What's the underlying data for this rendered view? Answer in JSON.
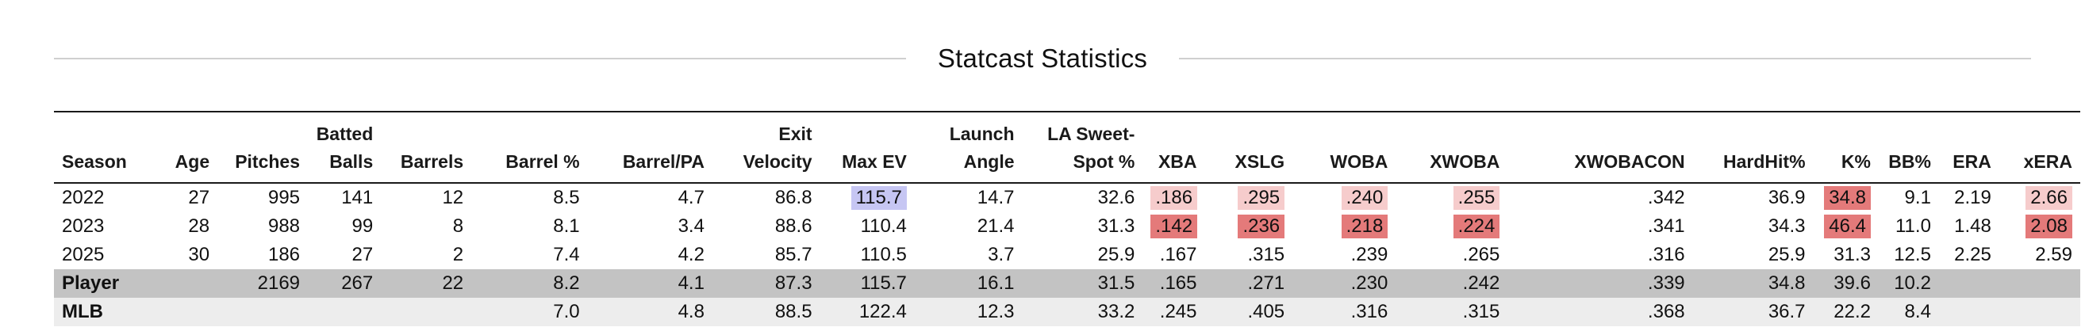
{
  "title": "Statcast Statistics",
  "columns": [
    {
      "key": "season",
      "label": "Season"
    },
    {
      "key": "age",
      "label": "Age"
    },
    {
      "key": "pitches",
      "label": "Pitches"
    },
    {
      "key": "batted_balls",
      "label": "Batted Balls"
    },
    {
      "key": "barrels",
      "label": "Barrels"
    },
    {
      "key": "barrel_pct",
      "label": "Barrel %"
    },
    {
      "key": "barrel_pa",
      "label": "Barrel/PA"
    },
    {
      "key": "exit_velocity",
      "label": "Exit Velocity"
    },
    {
      "key": "max_ev",
      "label": "Max EV"
    },
    {
      "key": "launch_angle",
      "label": "Launch Angle"
    },
    {
      "key": "la_sweet_spot",
      "label": "LA Sweet-Spot %"
    },
    {
      "key": "xba",
      "label": "XBA"
    },
    {
      "key": "xslg",
      "label": "XSLG"
    },
    {
      "key": "woba",
      "label": "WOBA"
    },
    {
      "key": "xwoba",
      "label": "XWOBA"
    },
    {
      "key": "xwobacon",
      "label": "XWOBACON"
    },
    {
      "key": "hardhit",
      "label": "HardHit%"
    },
    {
      "key": "k_pct",
      "label": "K%"
    },
    {
      "key": "bb_pct",
      "label": "BB%"
    },
    {
      "key": "era",
      "label": "ERA"
    },
    {
      "key": "xera",
      "label": "xERA"
    }
  ],
  "rows": [
    {
      "kind": "season",
      "cells": [
        "2022",
        "27",
        "995",
        "141",
        "12",
        "8.5",
        "4.7",
        "86.8",
        "115.7",
        "14.7",
        "32.6",
        ".186",
        ".295",
        ".240",
        ".255",
        ".342",
        "36.9",
        "34.8",
        "9.1",
        "2.19",
        "2.66"
      ],
      "highlights": {
        "8": "blue",
        "11": "red1",
        "12": "red1",
        "13": "red1",
        "14": "red1",
        "17": "red3",
        "20": "red1"
      }
    },
    {
      "kind": "season",
      "cells": [
        "2023",
        "28",
        "988",
        "99",
        "8",
        "8.1",
        "3.4",
        "88.6",
        "110.4",
        "21.4",
        "31.3",
        ".142",
        ".236",
        ".218",
        ".224",
        ".341",
        "34.3",
        "46.4",
        "11.0",
        "1.48",
        "2.08"
      ],
      "highlights": {
        "11": "red3",
        "12": "red3",
        "13": "red3",
        "14": "red3",
        "17": "red3",
        "20": "red3"
      }
    },
    {
      "kind": "season",
      "cells": [
        "2025",
        "30",
        "186",
        "27",
        "2",
        "7.4",
        "4.2",
        "85.7",
        "110.5",
        "3.7",
        "25.9",
        ".167",
        ".315",
        ".239",
        ".265",
        ".316",
        "25.9",
        "31.3",
        "12.5",
        "2.25",
        "2.59"
      ],
      "highlights": {}
    },
    {
      "kind": "player",
      "cells": [
        "Player",
        "",
        "2169",
        "267",
        "22",
        "8.2",
        "4.1",
        "87.3",
        "115.7",
        "16.1",
        "31.5",
        ".165",
        ".271",
        ".230",
        ".242",
        ".339",
        "34.8",
        "39.6",
        "10.2",
        "",
        ""
      ],
      "highlights": {}
    },
    {
      "kind": "mlb",
      "cells": [
        "MLB",
        "",
        "",
        "",
        "",
        "7.0",
        "4.8",
        "88.5",
        "122.4",
        "12.3",
        "33.2",
        ".245",
        ".405",
        ".316",
        ".315",
        ".368",
        "36.7",
        "22.2",
        "8.4",
        "",
        ""
      ],
      "highlights": {}
    }
  ]
}
